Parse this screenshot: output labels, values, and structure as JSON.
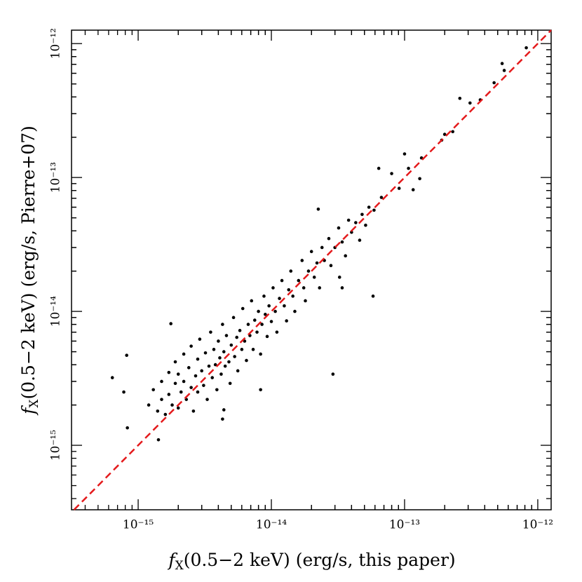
{
  "chart_data": {
    "type": "scatter",
    "xlabel": {
      "symbol": "f",
      "subscript": "X",
      "text": "(0.5−2 keV) (erg/s, this paper)"
    },
    "ylabel": {
      "symbol": "f",
      "subscript": "X",
      "text": "(0.5−2 keV) (erg/s, Pierre+07)"
    },
    "log_x": true,
    "log_y": true,
    "xlim": [
      3.16e-16,
      1.26e-12
    ],
    "ylim": [
      3.3e-16,
      1.26e-12
    ],
    "xticks": [
      {
        "value": 1e-15,
        "label": "10⁻¹⁵"
      },
      {
        "value": 1e-14,
        "label": "10⁻¹⁴"
      },
      {
        "value": 1e-13,
        "label": "10⁻¹³"
      },
      {
        "value": 1e-12,
        "label": "10⁻¹²"
      }
    ],
    "yticks": [
      {
        "value": 1e-15,
        "label": "10⁻¹⁵"
      },
      {
        "value": 1e-14,
        "label": "10⁻¹⁴"
      },
      {
        "value": 1e-13,
        "label": "10⁻¹³"
      },
      {
        "value": 1e-12,
        "label": "10⁻¹²"
      }
    ],
    "color": "#000000",
    "line_color": "#e41a1c",
    "x": [
      8.2e-13,
      5.4e-13,
      5.6e-13,
      4.7e-13,
      3.7e-13,
      2.6e-13,
      3.1e-13,
      2.3e-13,
      2e-13,
      1.9e-13,
      1.34e-13,
      1e-13,
      1.07e-13,
      1.16e-13,
      9.1e-14,
      1.3e-13,
      8e-14,
      6.4e-14,
      6.7e-14,
      5.9e-14,
      5.4e-14,
      5.8e-14,
      2.25e-14,
      2.9e-14,
      3.25e-14,
      3.4e-14,
      1.42e-15,
      8.3e-16,
      8.2e-16,
      6.4e-16,
      7.8e-16,
      1.76e-15,
      8.3e-15,
      4.4e-15,
      4.3e-15,
      1.2e-15,
      1.3e-15,
      1.4e-15,
      1.5e-15,
      1.5e-15,
      1.6e-15,
      1.7e-15,
      1.7e-15,
      1.8e-15,
      1.9e-15,
      1.9e-15,
      2e-15,
      2e-15,
      2.1e-15,
      2.2e-15,
      2.2e-15,
      2.3e-15,
      2.4e-15,
      2.5e-15,
      2.5e-15,
      2.6e-15,
      2.7e-15,
      2.8e-15,
      2.8e-15,
      2.9e-15,
      3e-15,
      3.1e-15,
      3.2e-15,
      3.3e-15,
      3.4e-15,
      3.5e-15,
      3.6e-15,
      3.7e-15,
      3.8e-15,
      3.9e-15,
      4e-15,
      4.1e-15,
      4.2e-15,
      4.3e-15,
      4.4e-15,
      4.5e-15,
      4.6e-15,
      4.8e-15,
      4.9e-15,
      5e-15,
      5.2e-15,
      5.3e-15,
      5.5e-15,
      5.6e-15,
      5.8e-15,
      6e-15,
      6.1e-15,
      6.3e-15,
      6.5e-15,
      6.7e-15,
      6.9e-15,
      7.1e-15,
      7.3e-15,
      7.5e-15,
      7.8e-15,
      8e-15,
      8.3e-15,
      8.5e-15,
      8.8e-15,
      9e-15,
      9.3e-15,
      9.6e-15,
      1e-14,
      1.03e-14,
      1.07e-14,
      1.1e-14,
      1.15e-14,
      1.2e-14,
      1.25e-14,
      1.3e-14,
      1.35e-14,
      1.4e-14,
      1.45e-14,
      1.5e-14,
      1.6e-14,
      1.7e-14,
      1.75e-14,
      1.8e-14,
      1.9e-14,
      2e-14,
      2.1e-14,
      2.2e-14,
      2.3e-14,
      2.4e-14,
      2.5e-14,
      2.7e-14,
      2.8e-14,
      3e-14,
      3.2e-14,
      3.4e-14,
      3.6e-14,
      3.8e-14,
      4e-14,
      4.3e-14,
      4.6e-14,
      4.8e-14,
      5.1e-14
    ],
    "y": [
      9.3e-13,
      7.1e-13,
      6.3e-13,
      5.1e-13,
      3.8e-13,
      3.9e-13,
      3.6e-13,
      2.2e-13,
      2.1e-13,
      1.9e-13,
      1.4e-13,
      1.5e-13,
      1.17e-13,
      8.1e-14,
      8.3e-14,
      9.8e-14,
      1.07e-13,
      1.17e-13,
      7.1e-14,
      5.7e-14,
      6e-14,
      1.3e-14,
      5.8e-14,
      3.4e-15,
      1.8e-14,
      1.5e-14,
      1.1e-15,
      1.35e-15,
      4.7e-15,
      3.2e-15,
      2.5e-15,
      8.1e-15,
      2.6e-15,
      1.84e-15,
      1.57e-15,
      2e-15,
      2.6e-15,
      1.8e-15,
      3e-15,
      2.2e-15,
      1.7e-15,
      3.5e-15,
      2.4e-15,
      2e-15,
      4.2e-15,
      2.9e-15,
      1.9e-15,
      3.4e-15,
      2.5e-15,
      4.8e-15,
      3e-15,
      2.2e-15,
      3.8e-15,
      2.7e-15,
      5.5e-15,
      1.8e-15,
      3.3e-15,
      4.4e-15,
      2.5e-15,
      6.2e-15,
      3.6e-15,
      2.8e-15,
      4.9e-15,
      2.2e-15,
      3.9e-15,
      7e-15,
      3.2e-15,
      5.2e-15,
      4e-15,
      2.6e-15,
      6e-15,
      4.5e-15,
      3.4e-15,
      8e-15,
      5e-15,
      3.9e-15,
      6.6e-15,
      4.2e-15,
      2.9e-15,
      5.6e-15,
      9e-15,
      4.6e-15,
      6.4e-15,
      3.6e-15,
      7.2e-15,
      5.2e-15,
      1.05e-14,
      6e-15,
      4.3e-15,
      8e-15,
      6.6e-15,
      1.2e-14,
      5.2e-15,
      8.6e-15,
      7e-15,
      1e-14,
      4.8e-15,
      8e-15,
      1.3e-14,
      9.5e-15,
      6.5e-15,
      1.1e-14,
      8.4e-15,
      1.5e-14,
      1e-14,
      7e-15,
      1.25e-14,
      1.7e-14,
      1.1e-14,
      8.5e-15,
      1.45e-14,
      2e-14,
      1.3e-14,
      1e-14,
      1.7e-14,
      2.4e-14,
      1.5e-14,
      1.2e-14,
      2e-14,
      2.8e-14,
      1.8e-14,
      2.3e-14,
      1.5e-14,
      3e-14,
      2.4e-14,
      3.5e-14,
      2.2e-14,
      3e-14,
      4.2e-14,
      3.3e-14,
      2.6e-14,
      4.8e-14,
      3.9e-14,
      4.6e-14,
      3.4e-14,
      5.3e-14,
      4.4e-14
    ]
  }
}
